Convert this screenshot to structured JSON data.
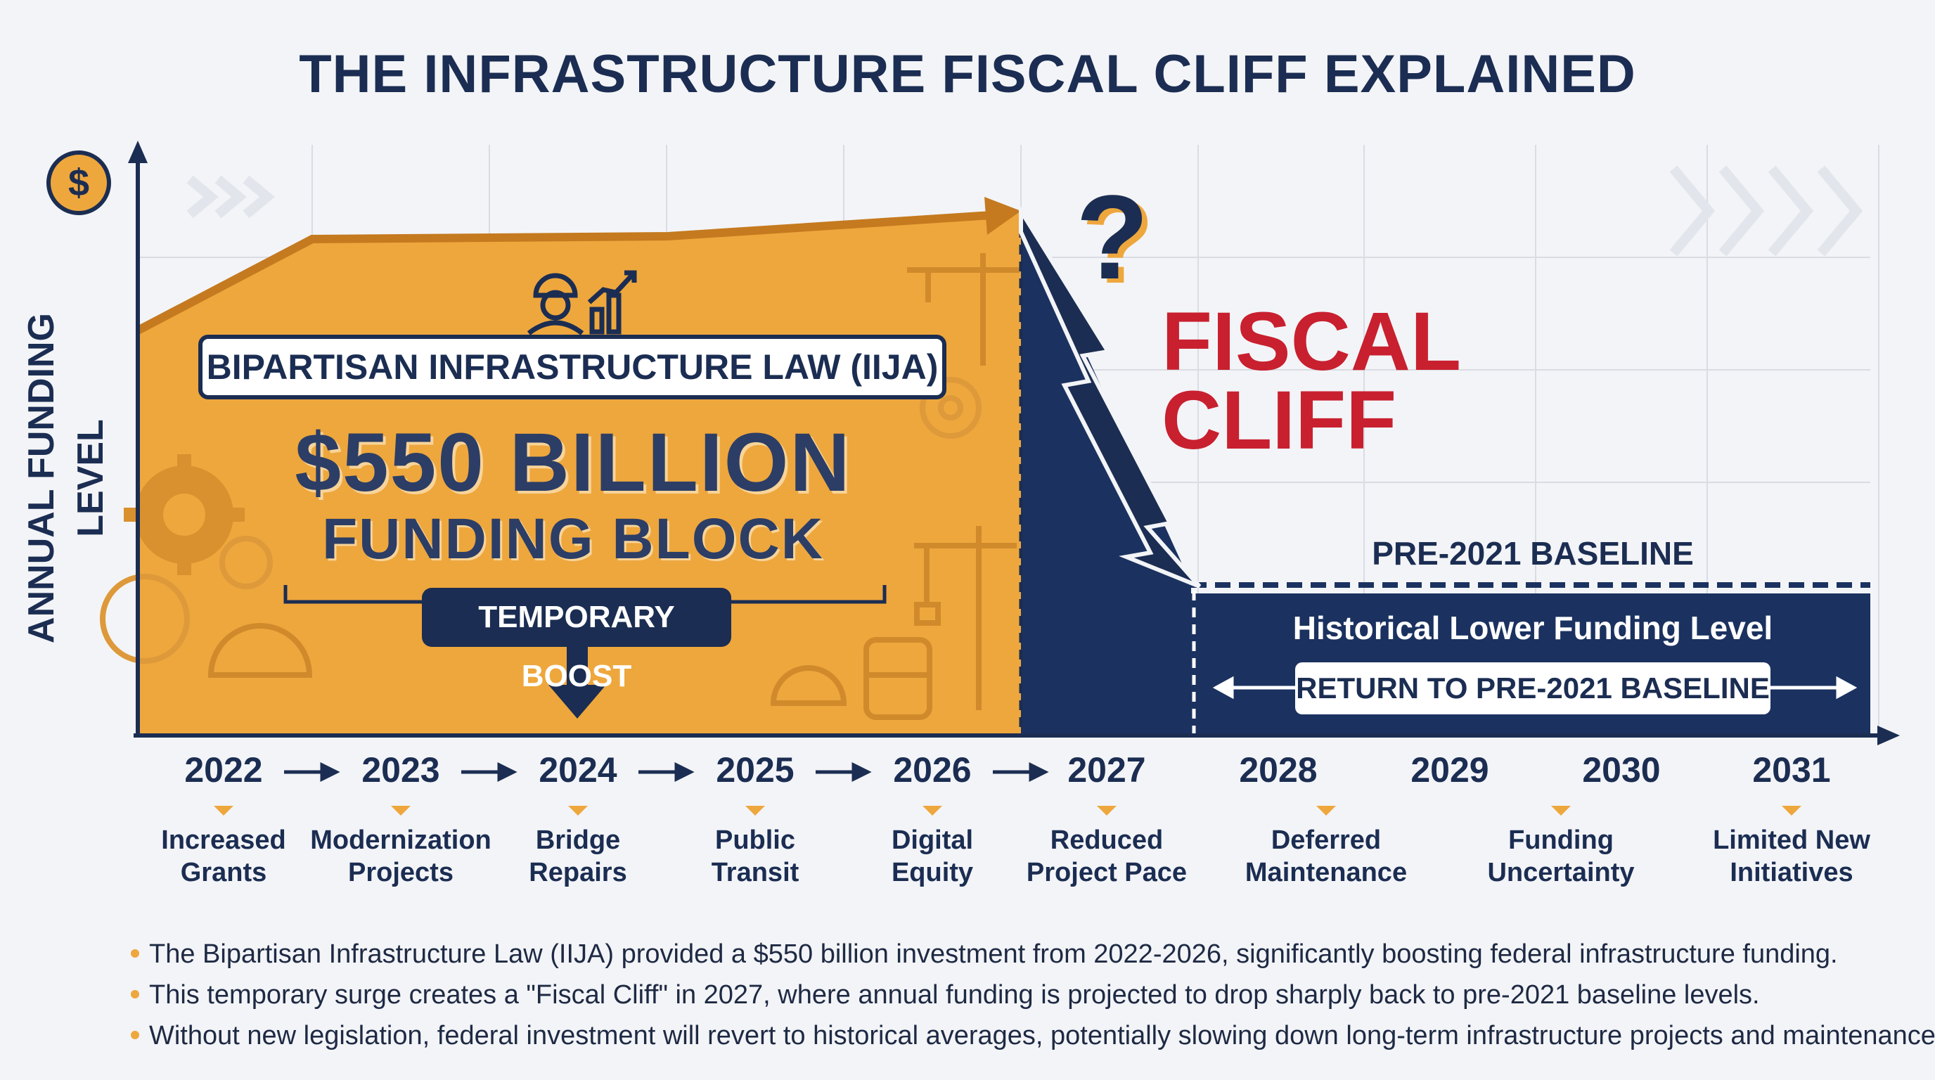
{
  "title": "THE INFRASTRUCTURE FISCAL CLIFF EXPLAINED",
  "axis": {
    "y_label": "ANNUAL FUNDING LEVEL",
    "currency_symbol": "$"
  },
  "funding_block": {
    "law_name": "BIPARTISAN INFRASTRUCTURE LAW (IIJA)",
    "amount": "$550 BILLION",
    "subtitle": "FUNDING BLOCK",
    "tag": "TEMPORARY BOOST",
    "color": "#eea73d"
  },
  "cliff": {
    "question_mark": "?",
    "title_line1": "FISCAL",
    "title_line2": "CLIFF",
    "color": "#c8202f"
  },
  "baseline": {
    "label": "PRE-2021 BASELINE",
    "region_label": "Historical Lower Funding Level",
    "return_label": "RETURN TO PRE-2021 BASELINE",
    "color": "#1b3260"
  },
  "timeline": [
    {
      "year": "2022",
      "effect_line1": "Increased",
      "effect_line2": "Grants"
    },
    {
      "year": "2023",
      "effect_line1": "Modernization",
      "effect_line2": "Projects"
    },
    {
      "year": "2024",
      "effect_line1": "Bridge",
      "effect_line2": "Repairs"
    },
    {
      "year": "2025",
      "effect_line1": "Public",
      "effect_line2": "Transit"
    },
    {
      "year": "2026",
      "effect_line1": "Digital",
      "effect_line2": "Equity"
    },
    {
      "year": "2027",
      "effect_line1": "Reduced",
      "effect_line2": "Project Pace"
    },
    {
      "year": "2028",
      "effect_line1": "Deferred",
      "effect_line2": "Maintenance"
    },
    {
      "year": "2029",
      "effect_line1": "",
      "effect_line2": ""
    },
    {
      "year": "2030",
      "effect_line1": "Funding",
      "effect_line2": "Uncertainty"
    },
    {
      "year": "2031",
      "effect_line1": "Limited New",
      "effect_line2": "Initiatives"
    }
  ],
  "notes": [
    "The Bipartisan Infrastructure Law (IIJA) provided a $550 billion investment from 2022-2026, significantly boosting federal infrastructure funding.",
    "This temporary surge creates a \"Fiscal Cliff\" in 2027, where annual funding is projected to drop sharply back to pre-2021 baseline levels.",
    "Without new legislation, federal investment will revert to historical averages, potentially slowing down long-term infrastructure projects and maintenance."
  ],
  "icons": [
    "dollar-icon",
    "worker-icon",
    "growth-chart-icon",
    "gear-icon",
    "crane-icon",
    "train-icon",
    "hard-hat-icon",
    "lightning-arrow-icon",
    "chevrons-icon"
  ]
}
